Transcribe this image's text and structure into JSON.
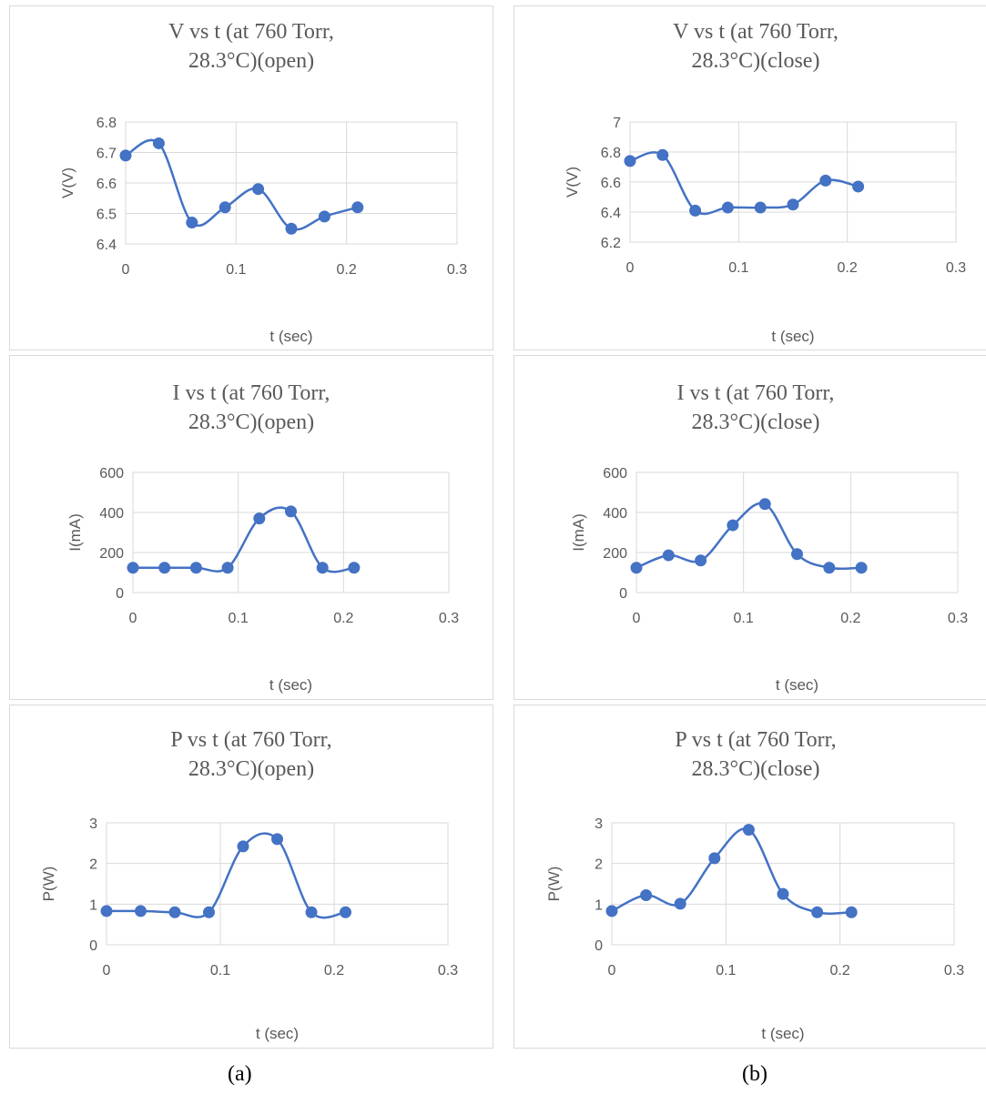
{
  "captions": [
    "(a)",
    "(b)"
  ],
  "chart_data": [
    {
      "type": "line",
      "title_lines": [
        "V vs t (at 760 Torr,",
        "28.3°C)(open)"
      ],
      "xlabel": "t (sec)",
      "ylabel": "V(V)",
      "x": [
        0,
        0.03,
        0.06,
        0.09,
        0.12,
        0.15,
        0.18,
        0.21
      ],
      "series": [
        {
          "values": [
            6.69,
            6.73,
            6.47,
            6.52,
            6.58,
            6.45,
            6.49,
            6.52
          ]
        }
      ],
      "xlim": [
        0,
        0.3
      ],
      "ylim": [
        6.4,
        6.8
      ],
      "xticks": [
        "0",
        "0.1",
        "0.2",
        "0.3"
      ],
      "yticks": [
        "6.4",
        "6.5",
        "6.6",
        "6.7",
        "6.8"
      ],
      "grid": true,
      "smooth": true,
      "color": "#4472c4"
    },
    {
      "type": "line",
      "title_lines": [
        "V vs t (at 760 Torr,",
        "28.3°C)(close)"
      ],
      "xlabel": "t  (sec)",
      "ylabel": "V(V)",
      "x": [
        0,
        0.03,
        0.06,
        0.09,
        0.12,
        0.15,
        0.18,
        0.21
      ],
      "series": [
        {
          "values": [
            6.74,
            6.78,
            6.41,
            6.43,
            6.43,
            6.45,
            6.61,
            6.57
          ]
        }
      ],
      "xlim": [
        0,
        0.3
      ],
      "ylim": [
        6.2,
        7.0
      ],
      "xticks": [
        "0",
        "0.1",
        "0.2",
        "0.3"
      ],
      "yticks": [
        "6.2",
        "6.4",
        "6.6",
        "6.8",
        "7"
      ],
      "grid": true,
      "smooth": true,
      "color": "#4472c4"
    },
    {
      "type": "line",
      "title_lines": [
        "I vs t (at 760 Torr,",
        "28.3°C)(open)"
      ],
      "xlabel": "t (sec)",
      "ylabel": "I(mA)",
      "x": [
        0,
        0.03,
        0.06,
        0.09,
        0.12,
        0.15,
        0.18,
        0.21
      ],
      "series": [
        {
          "values": [
            124,
            124,
            124,
            124,
            370,
            405,
            124,
            124
          ]
        }
      ],
      "xlim": [
        0,
        0.3
      ],
      "ylim": [
        0,
        600
      ],
      "xticks": [
        "0",
        "0.1",
        "0.2",
        "0.3"
      ],
      "yticks": [
        "0",
        "200",
        "400",
        "600"
      ],
      "grid": true,
      "smooth": true,
      "color": "#4472c4"
    },
    {
      "type": "line",
      "title_lines": [
        "I vs t (at 760 Torr,",
        "28.3°C)(close)"
      ],
      "xlabel": "t (sec)",
      "ylabel": "I(mA)",
      "x": [
        0,
        0.03,
        0.06,
        0.09,
        0.12,
        0.15,
        0.18,
        0.21
      ],
      "series": [
        {
          "values": [
            124,
            186,
            160,
            336,
            442,
            192,
            124,
            124
          ]
        }
      ],
      "xlim": [
        0,
        0.3
      ],
      "ylim": [
        0,
        600
      ],
      "xticks": [
        "0",
        "0.1",
        "0.2",
        "0.3"
      ],
      "yticks": [
        "0",
        "200",
        "400",
        "600"
      ],
      "grid": true,
      "smooth": true,
      "color": "#4472c4"
    },
    {
      "type": "line",
      "title_lines": [
        "P vs t (at 760 Torr,",
        "28.3°C)(open)"
      ],
      "xlabel": "t (sec)",
      "ylabel": "P(W)",
      "x": [
        0,
        0.03,
        0.06,
        0.09,
        0.12,
        0.15,
        0.18,
        0.21
      ],
      "series": [
        {
          "values": [
            0.83,
            0.83,
            0.8,
            0.8,
            2.42,
            2.6,
            0.8,
            0.8
          ]
        }
      ],
      "xlim": [
        0,
        0.3
      ],
      "ylim": [
        0,
        3
      ],
      "xticks": [
        "0",
        "0.1",
        "0.2",
        "0.3"
      ],
      "yticks": [
        "0",
        "1",
        "2",
        "3"
      ],
      "grid": true,
      "smooth": true,
      "color": "#4472c4"
    },
    {
      "type": "line",
      "title_lines": [
        "P vs t (at 760 Torr,",
        "28.3°C)(close)"
      ],
      "xlabel": "t (sec)",
      "ylabel": "P(W)",
      "x": [
        0,
        0.03,
        0.06,
        0.09,
        0.12,
        0.15,
        0.18,
        0.21
      ],
      "series": [
        {
          "values": [
            0.83,
            1.22,
            1.01,
            2.13,
            2.83,
            1.25,
            0.8,
            0.8
          ]
        }
      ],
      "xlim": [
        0,
        0.3
      ],
      "ylim": [
        0,
        3
      ],
      "xticks": [
        "0",
        "0.1",
        "0.2",
        "0.3"
      ],
      "yticks": [
        "0",
        "1",
        "2",
        "3"
      ],
      "grid": true,
      "smooth": true,
      "color": "#4472c4"
    }
  ]
}
